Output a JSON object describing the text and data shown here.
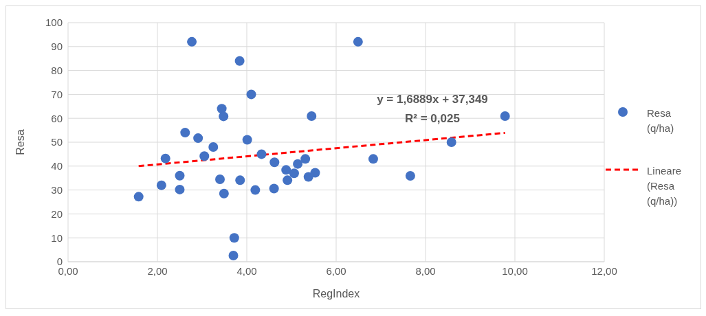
{
  "chart_data": {
    "type": "scatter",
    "xlabel": "RegIndex",
    "ylabel": "Resa",
    "xlim": [
      0,
      12
    ],
    "xticks": [
      {
        "value": 0,
        "label": "0,00"
      },
      {
        "value": 2,
        "label": "2,00"
      },
      {
        "value": 4,
        "label": "4,00"
      },
      {
        "value": 6,
        "label": "6,00"
      },
      {
        "value": 8,
        "label": "8,00"
      },
      {
        "value": 10,
        "label": "10,00"
      },
      {
        "value": 12,
        "label": "12,00"
      }
    ],
    "ylim": [
      0,
      100
    ],
    "yticks": [
      0,
      10,
      20,
      30,
      40,
      50,
      60,
      70,
      80,
      90,
      100
    ],
    "grid": true,
    "legend": "right",
    "marker": "circle",
    "annotations": [
      "y = 1,6889x + 37,349",
      "R² = 0,025"
    ],
    "series": [
      {
        "name": "Resa (q/ha)",
        "color": "#4472c4",
        "x": [
          1.58,
          2.09,
          2.18,
          2.5,
          2.5,
          2.62,
          2.77,
          2.91,
          3.05,
          3.25,
          3.4,
          3.44,
          3.48,
          3.49,
          3.72,
          3.7,
          3.84,
          3.85,
          4.01,
          4.1,
          4.19,
          4.33,
          4.62,
          4.61,
          4.88,
          4.91,
          5.06,
          5.14,
          5.31,
          5.38,
          5.53,
          5.45,
          6.49,
          6.83,
          7.66,
          8.58,
          9.78
        ],
        "values": [
          27.2,
          32,
          43.2,
          36,
          30.2,
          54,
          92,
          51.7,
          44.2,
          48,
          34.5,
          64,
          60.8,
          28.5,
          10,
          2.6,
          84,
          34.1,
          51,
          70,
          30,
          45,
          41.6,
          30.6,
          38.4,
          34.1,
          37,
          40.9,
          43,
          35.5,
          37.2,
          60.9,
          92,
          43,
          35.9,
          50,
          60.9
        ]
      },
      {
        "name": "Lineare (Resa (q/ha))",
        "type": "line",
        "color": "#ff0000",
        "line_style": "dashed",
        "marker": "none",
        "x": [
          1.58,
          9.78
        ],
        "values": [
          40,
          53.9
        ]
      }
    ]
  }
}
